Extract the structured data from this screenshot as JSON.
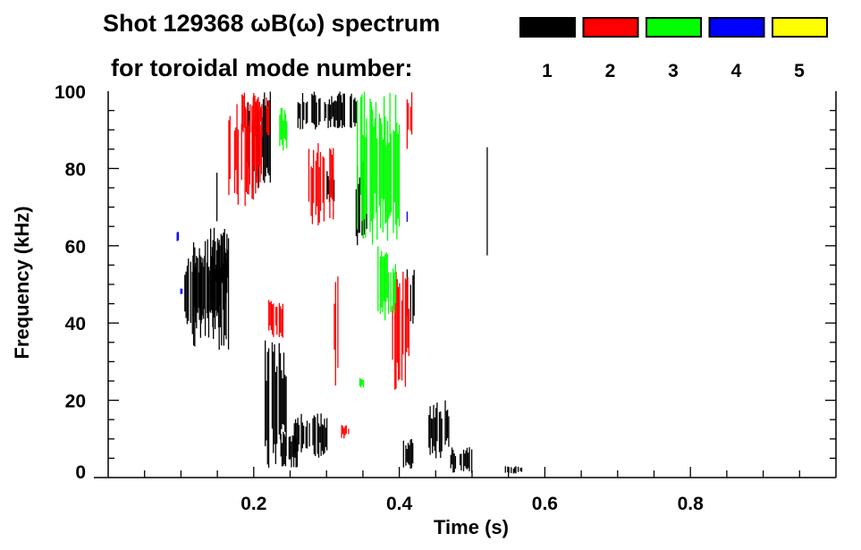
{
  "chart_data": {
    "type": "heatmap",
    "title_line1": "Shot 129368 ωB(ω) spectrum",
    "title_line2": "for toroidal mode number:",
    "xlabel": "Time (s)",
    "ylabel": "Frequency (kHz)",
    "xlim": [
      0,
      1.0
    ],
    "ylim": [
      0,
      100
    ],
    "xticks": [
      {
        "v": 0.2,
        "label": "0.2"
      },
      {
        "v": 0.4,
        "label": "0.4"
      },
      {
        "v": 0.6,
        "label": "0.6"
      },
      {
        "v": 0.8,
        "label": "0.8"
      }
    ],
    "yticks": [
      {
        "v": 0,
        "label": "0"
      },
      {
        "v": 20,
        "label": "20"
      },
      {
        "v": 40,
        "label": "40"
      },
      {
        "v": 60,
        "label": "60"
      },
      {
        "v": 80,
        "label": "80"
      },
      {
        "v": 100,
        "label": "100"
      }
    ],
    "legend": [
      {
        "label": "1",
        "color": "#000000"
      },
      {
        "label": "2",
        "color": "#ff0000"
      },
      {
        "label": "3",
        "color": "#00ff00"
      },
      {
        "label": "4",
        "color": "#0000ff"
      },
      {
        "label": "5",
        "color": "#ffff00"
      }
    ],
    "series": [
      {
        "name": "n=1",
        "color": "#000000",
        "regions": [
          [
            0.103,
            0.16,
            38,
            58
          ],
          [
            0.115,
            0.165,
            33,
            62
          ],
          [
            0.14,
            0.17,
            45,
            65
          ],
          [
            0.147,
            0.152,
            66,
            84
          ],
          [
            0.19,
            0.222,
            75,
            100
          ],
          [
            0.215,
            0.245,
            2,
            36
          ],
          [
            0.235,
            0.26,
            2,
            12
          ],
          [
            0.26,
            0.34,
            90,
            100
          ],
          [
            0.255,
            0.3,
            5,
            17
          ],
          [
            0.34,
            0.355,
            60,
            82
          ],
          [
            0.405,
            0.42,
            2,
            10
          ],
          [
            0.41,
            0.42,
            35,
            55
          ],
          [
            0.52,
            0.525,
            55,
            86
          ],
          [
            0.44,
            0.47,
            5,
            20
          ],
          [
            0.47,
            0.5,
            1,
            8
          ],
          [
            0.545,
            0.57,
            1,
            3
          ],
          [
            0.3,
            0.31,
            70,
            80
          ]
        ]
      },
      {
        "name": "n=2",
        "color": "#ff0000",
        "regions": [
          [
            0.165,
            0.21,
            70,
            100
          ],
          [
            0.18,
            0.22,
            88,
            100
          ],
          [
            0.275,
            0.31,
            65,
            88
          ],
          [
            0.31,
            0.315,
            22,
            55
          ],
          [
            0.39,
            0.415,
            22,
            55
          ],
          [
            0.41,
            0.42,
            85,
            100
          ],
          [
            0.22,
            0.24,
            36,
            46
          ],
          [
            0.32,
            0.33,
            10,
            14
          ]
        ]
      },
      {
        "name": "n=3",
        "color": "#00ff00",
        "regions": [
          [
            0.34,
            0.4,
            60,
            100
          ],
          [
            0.37,
            0.395,
            40,
            60
          ],
          [
            0.235,
            0.245,
            84,
            96
          ],
          [
            0.345,
            0.35,
            23,
            26
          ]
        ]
      },
      {
        "name": "n=4",
        "color": "#0000ff",
        "regions": [
          [
            0.094,
            0.097,
            61,
            64
          ],
          [
            0.099,
            0.101,
            47,
            49
          ],
          [
            0.41,
            0.413,
            66,
            70
          ]
        ]
      },
      {
        "name": "n=5",
        "color": "#ffff00",
        "regions": []
      }
    ]
  }
}
